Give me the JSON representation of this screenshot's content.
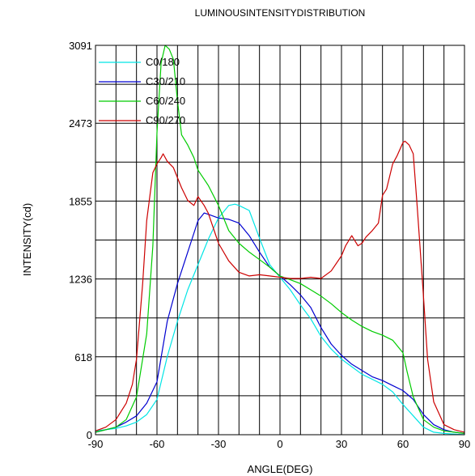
{
  "chart_data": {
    "type": "line",
    "title": "LUMINOUSINTENSITYDISTRIBUTION",
    "xlabel": "ANGLE(DEG)",
    "ylabel": "INTENSITY(cd)",
    "xlim": [
      -90,
      90
    ],
    "ylim": [
      0,
      3091
    ],
    "x_ticks": [
      "-90",
      "-60",
      "-30",
      "0",
      "30",
      "60",
      "90"
    ],
    "x_tick_values": [
      -90,
      -60,
      -30,
      0,
      30,
      60,
      90
    ],
    "y_ticks": [
      "0",
      "618",
      "1236",
      "1855",
      "2473",
      "3091"
    ],
    "y_tick_values": [
      0,
      618,
      1236,
      1855,
      2473,
      3091
    ],
    "grid": true,
    "legend_position": "top-left",
    "series": [
      {
        "name": "C0/180",
        "color": "#00e5e5",
        "x": [
          -90,
          -85,
          -80,
          -75,
          -70,
          -65,
          -60,
          -55,
          -50,
          -45,
          -40,
          -35,
          -30,
          -25,
          -22,
          -20,
          -15,
          -10,
          -5,
          0,
          5,
          10,
          15,
          20,
          25,
          30,
          35,
          40,
          45,
          50,
          55,
          60,
          65,
          70,
          75,
          80,
          85,
          90
        ],
        "y": [
          30,
          40,
          50,
          70,
          100,
          160,
          280,
          620,
          900,
          1150,
          1350,
          1550,
          1720,
          1820,
          1830,
          1820,
          1780,
          1560,
          1350,
          1250,
          1150,
          1030,
          920,
          780,
          680,
          600,
          540,
          480,
          440,
          400,
          340,
          240,
          150,
          60,
          20,
          10,
          5,
          0
        ]
      },
      {
        "name": "C30/210",
        "color": "#0000d0",
        "x": [
          -90,
          -85,
          -80,
          -75,
          -70,
          -65,
          -60,
          -55,
          -50,
          -45,
          -40,
          -37,
          -35,
          -30,
          -25,
          -20,
          -15,
          -10,
          -5,
          0,
          5,
          10,
          15,
          20,
          25,
          30,
          35,
          40,
          45,
          50,
          55,
          60,
          65,
          70,
          75,
          80,
          85,
          90
        ],
        "y": [
          20,
          40,
          60,
          100,
          150,
          250,
          420,
          900,
          1200,
          1450,
          1700,
          1760,
          1750,
          1720,
          1710,
          1680,
          1580,
          1450,
          1330,
          1260,
          1190,
          1110,
          1010,
          850,
          720,
          630,
          560,
          510,
          460,
          430,
          390,
          350,
          280,
          160,
          80,
          40,
          20,
          10
        ]
      },
      {
        "name": "C60/240",
        "color": "#00cc00",
        "x": [
          -90,
          -85,
          -80,
          -75,
          -70,
          -65,
          -62,
          -60,
          -58,
          -56,
          -54,
          -52,
          -50,
          -48,
          -45,
          -42,
          -40,
          -35,
          -30,
          -25,
          -20,
          -15,
          -10,
          -5,
          0,
          5,
          10,
          15,
          20,
          25,
          30,
          35,
          40,
          45,
          50,
          55,
          60,
          62,
          65,
          70,
          75,
          80,
          85,
          90
        ],
        "y": [
          20,
          40,
          60,
          120,
          300,
          800,
          1500,
          2400,
          2950,
          3091,
          3060,
          2980,
          2650,
          2380,
          2300,
          2200,
          2100,
          1980,
          1820,
          1620,
          1520,
          1450,
          1390,
          1330,
          1260,
          1230,
          1200,
          1150,
          1100,
          1040,
          970,
          910,
          860,
          820,
          790,
          750,
          650,
          500,
          300,
          120,
          60,
          30,
          20,
          10
        ]
      },
      {
        "name": "C90/270",
        "color": "#cc0000",
        "x": [
          -90,
          -85,
          -80,
          -75,
          -72,
          -70,
          -67,
          -65,
          -62,
          -60,
          -58,
          -57,
          -55,
          -52,
          -50,
          -48,
          -45,
          -42,
          -40,
          -37,
          -35,
          -30,
          -25,
          -20,
          -15,
          -10,
          -5,
          0,
          5,
          10,
          15,
          20,
          25,
          30,
          32,
          35,
          38,
          40,
          42,
          45,
          48,
          50,
          52,
          55,
          57,
          60,
          61,
          63,
          65,
          67,
          70,
          72,
          75,
          80,
          85,
          90
        ],
        "y": [
          30,
          60,
          120,
          250,
          400,
          600,
          1200,
          1700,
          2080,
          2150,
          2200,
          2230,
          2170,
          2120,
          2040,
          1960,
          1860,
          1820,
          1890,
          1820,
          1760,
          1520,
          1380,
          1290,
          1260,
          1270,
          1260,
          1250,
          1240,
          1240,
          1250,
          1240,
          1300,
          1420,
          1500,
          1580,
          1500,
          1520,
          1570,
          1620,
          1680,
          1900,
          1950,
          2150,
          2210,
          2320,
          2330,
          2300,
          2230,
          1800,
          1100,
          600,
          260,
          80,
          40,
          20
        ]
      }
    ]
  }
}
